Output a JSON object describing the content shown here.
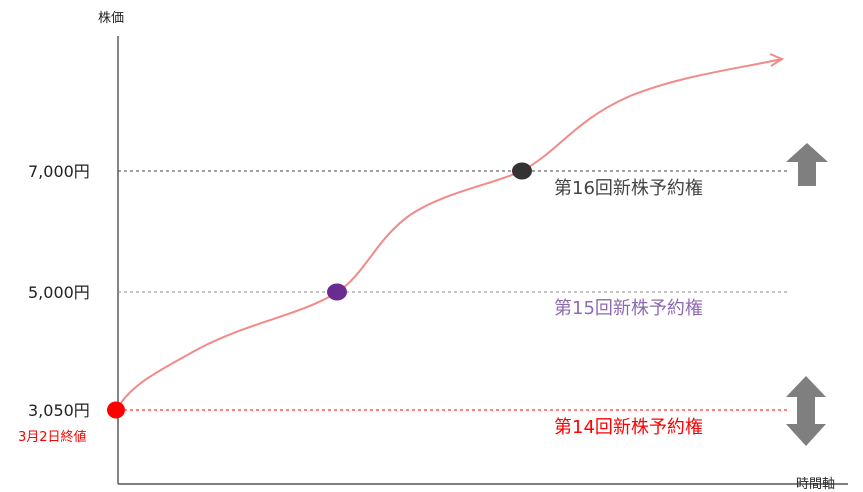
{
  "axes": {
    "y_title": "株価",
    "x_title": "時間軸"
  },
  "levels": {
    "l7000": {
      "price_label": "7,000円",
      "option_label": "第16回新株予約権",
      "color": "#444444"
    },
    "l5000": {
      "price_label": "5,000円",
      "option_label": "第15回新株予約権",
      "color": "#8e6bb0"
    },
    "l3050": {
      "price_label": "3,050円",
      "option_label": "第14回新株予約権",
      "color": "#ff0000",
      "note": "3月2日終値"
    }
  },
  "colors": {
    "curve": "#f28a8a",
    "point_3050": "#ff0000",
    "point_5000": "#6a2c91",
    "point_7000": "#333333",
    "arrow": "#7f7f7f",
    "axis": "#333333"
  },
  "icons": [
    "up-arrow-icon",
    "up-down-arrow-icon"
  ]
}
